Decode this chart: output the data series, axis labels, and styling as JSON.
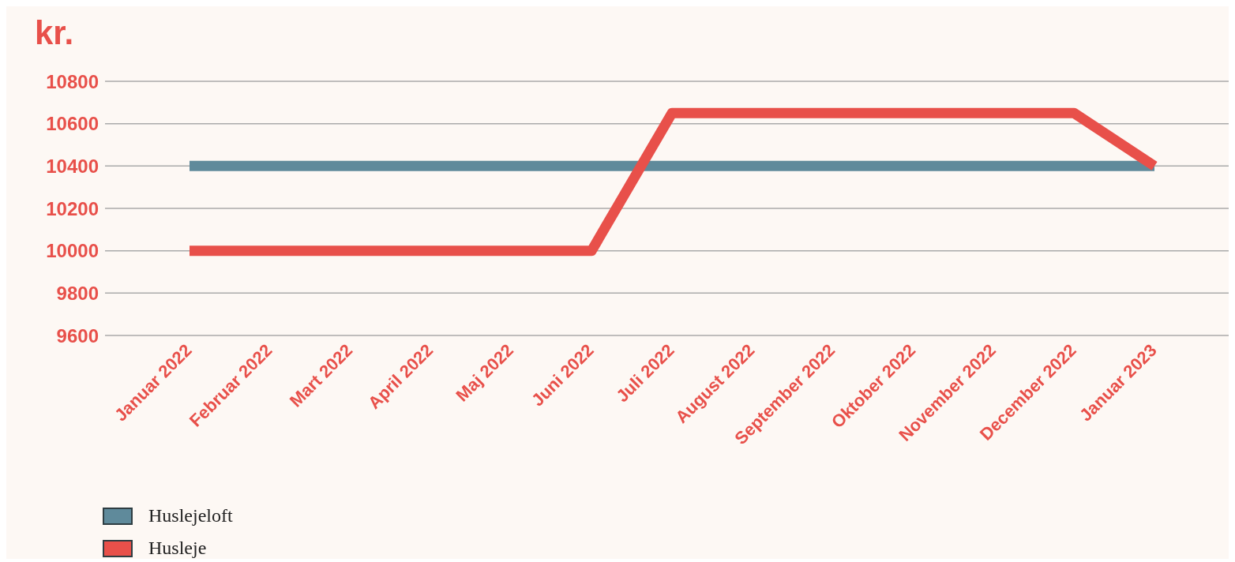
{
  "chart_data": {
    "type": "line",
    "ylabel": "kr.",
    "categories": [
      "Januar 2022",
      "Februar 2022",
      "Mart 2022",
      "April 2022",
      "Maj 2022",
      "Juni 2022",
      "Juli 2022",
      "August 2022",
      "September 2022",
      "Oktober 2022",
      "November 2022",
      "December 2022",
      "Januar 2023"
    ],
    "series": [
      {
        "name": "Huslejeloft",
        "color": "#5f8a9b",
        "values": [
          10400,
          10400,
          10400,
          10400,
          10400,
          10400,
          10400,
          10400,
          10400,
          10400,
          10400,
          10400,
          10400
        ]
      },
      {
        "name": "Husleje",
        "color": "#e8504a",
        "values": [
          10000,
          10000,
          10000,
          10000,
          10000,
          10000,
          10650,
          10650,
          10650,
          10650,
          10650,
          10650,
          10400
        ]
      }
    ],
    "ylim": [
      9600,
      10800
    ],
    "yticks": [
      9600,
      9800,
      10000,
      10200,
      10400,
      10600,
      10800
    ],
    "grid": "y",
    "legend": "bottom left",
    "marker": "none",
    "line_style": "solid"
  }
}
